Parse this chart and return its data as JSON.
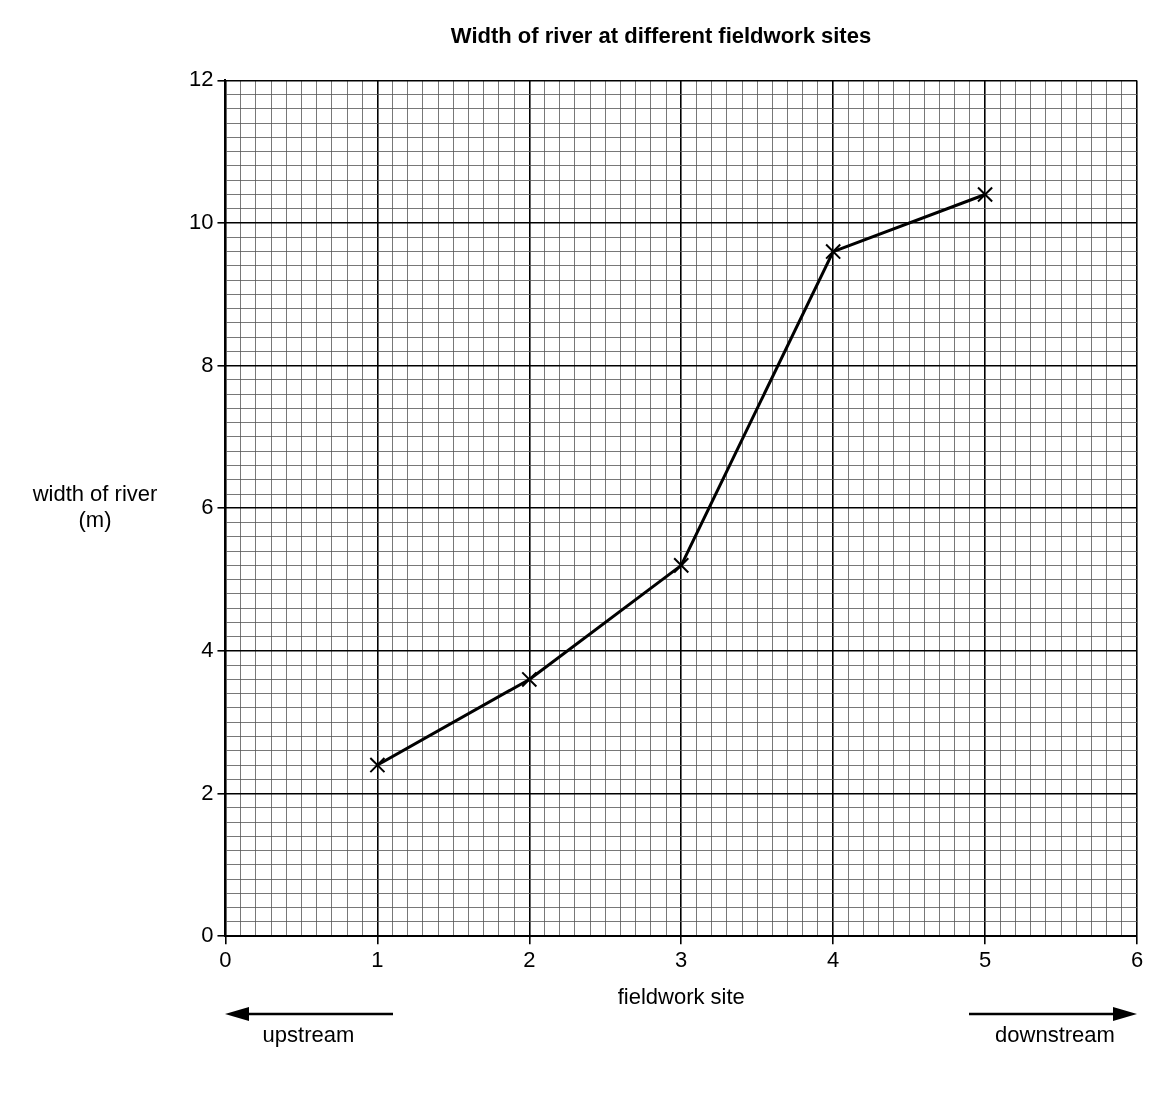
{
  "chart_data": {
    "type": "line",
    "title": "Width of river at different fieldwork sites",
    "xlabel": "fieldwork site",
    "ylabel": "width of river (m)",
    "x": [
      1,
      2,
      3,
      4,
      5
    ],
    "series": [
      {
        "color": "#000000",
        "values": [
          2.4,
          3.6,
          5.2,
          9.6,
          10.4
        ]
      }
    ],
    "xlim": [
      0,
      6
    ],
    "xticks": [
      0,
      {
        "value": 0.1,
        "label": null
      },
      {
        "value": 0.2,
        "label": null
      },
      {
        "value": 0.3,
        "label": null
      },
      {
        "value": 0.4,
        "label": null
      },
      {
        "value": 0.5,
        "label": null
      },
      {
        "value": 0.6,
        "label": null
      },
      {
        "value": 0.7,
        "label": null
      },
      {
        "value": 0.8,
        "label": null
      },
      {
        "value": 0.9,
        "label": null
      },
      1,
      {
        "value": 1.1,
        "label": null
      },
      {
        "value": 1.2,
        "label": null
      },
      {
        "value": 1.3,
        "label": null
      },
      {
        "value": 1.4,
        "label": null
      },
      {
        "value": 1.5,
        "label": null
      },
      {
        "value": 1.6,
        "label": null
      },
      {
        "value": 1.7,
        "label": null
      },
      {
        "value": 1.8,
        "label": null
      },
      {
        "value": 1.9,
        "label": null
      },
      2,
      {
        "value": 2.1,
        "label": null
      },
      {
        "value": 2.2,
        "label": null
      },
      {
        "value": 2.3,
        "label": null
      },
      {
        "value": 2.4,
        "label": null
      },
      {
        "value": 2.5,
        "label": null
      },
      {
        "value": 2.6,
        "label": null
      },
      {
        "value": 2.7,
        "label": null
      },
      {
        "value": 2.8,
        "label": null
      },
      {
        "value": 2.9,
        "label": null
      },
      3,
      {
        "value": 3.1,
        "label": null
      },
      {
        "value": 3.2,
        "label": null
      },
      {
        "value": 3.3,
        "label": null
      },
      {
        "value": 3.4,
        "label": null
      },
      {
        "value": 3.5,
        "label": null
      },
      {
        "value": 3.6,
        "label": null
      },
      {
        "value": 3.7,
        "label": null
      },
      {
        "value": 3.8,
        "label": null
      },
      {
        "value": 3.9,
        "label": null
      },
      4,
      {
        "value": 4.1,
        "label": null
      },
      {
        "value": 4.2,
        "label": null
      },
      {
        "value": 4.3,
        "label": null
      },
      {
        "value": 4.4,
        "label": null
      },
      {
        "value": 4.5,
        "label": null
      },
      {
        "value": 4.6,
        "label": null
      },
      {
        "value": 4.7,
        "label": null
      },
      {
        "value": 4.8,
        "label": null
      },
      {
        "value": 4.9,
        "label": null
      },
      5,
      {
        "value": 5.1,
        "label": null
      },
      {
        "value": 5.2,
        "label": null
      },
      {
        "value": 5.3,
        "label": null
      },
      {
        "value": 5.4,
        "label": null
      },
      {
        "value": 5.5,
        "label": null
      },
      {
        "value": 5.6,
        "label": null
      },
      {
        "value": 5.7,
        "label": null
      },
      {
        "value": 5.8,
        "label": null
      },
      {
        "value": 5.9,
        "label": null
      },
      6
    ],
    "ylim": [
      0,
      12
    ],
    "yticks": [
      0,
      {
        "value": 0.2,
        "label": null
      },
      {
        "value": 0.4,
        "label": null
      },
      {
        "value": 0.6,
        "label": null
      },
      {
        "value": 0.8,
        "label": null
      },
      {
        "value": 1,
        "label": null
      },
      {
        "value": 1.2,
        "label": null
      },
      {
        "value": 1.4,
        "label": null
      },
      {
        "value": 1.6,
        "label": null
      },
      {
        "value": 1.8,
        "label": null
      },
      2,
      {
        "value": 2.2,
        "label": null
      },
      {
        "value": 2.4,
        "label": null
      },
      {
        "value": 2.6,
        "label": null
      },
      {
        "value": 2.8,
        "label": null
      },
      {
        "value": 3,
        "label": null
      },
      {
        "value": 3.2,
        "label": null
      },
      {
        "value": 3.4,
        "label": null
      },
      {
        "value": 3.6,
        "label": null
      },
      {
        "value": 3.8,
        "label": null
      },
      4,
      {
        "value": 4.2,
        "label": null
      },
      {
        "value": 4.4,
        "label": null
      },
      {
        "value": 4.6,
        "label": null
      },
      {
        "value": 4.8,
        "label": null
      },
      {
        "value": 5,
        "label": null
      },
      {
        "value": 5.2,
        "label": null
      },
      {
        "value": 5.4,
        "label": null
      },
      {
        "value": 5.6,
        "label": null
      },
      {
        "value": 5.8,
        "label": null
      },
      6,
      {
        "value": 6.2,
        "label": null
      },
      {
        "value": 6.4,
        "label": null
      },
      {
        "value": 6.6,
        "label": null
      },
      {
        "value": 6.8,
        "label": null
      },
      {
        "value": 7,
        "label": null
      },
      {
        "value": 7.2,
        "label": null
      },
      {
        "value": 7.4,
        "label": null
      },
      {
        "value": 7.6,
        "label": null
      },
      {
        "value": 7.8,
        "label": null
      },
      8,
      {
        "value": 8.2,
        "label": null
      },
      {
        "value": 8.4,
        "label": null
      },
      {
        "value": 8.6,
        "label": null
      },
      {
        "value": 8.8,
        "label": null
      },
      {
        "value": 9,
        "label": null
      },
      {
        "value": 9.2,
        "label": null
      },
      {
        "value": 9.4,
        "label": null
      },
      {
        "value": 9.6,
        "label": null
      },
      {
        "value": 9.8,
        "label": null
      },
      10,
      {
        "value": 10.2,
        "label": null
      },
      {
        "value": 10.4,
        "label": null
      },
      {
        "value": 10.6,
        "label": null
      },
      {
        "value": 10.8,
        "label": null
      },
      {
        "value": 11,
        "label": null
      },
      {
        "value": 11.2,
        "label": null
      },
      {
        "value": 11.4,
        "label": null
      },
      {
        "value": 11.6,
        "label": null
      },
      {
        "value": 11.8,
        "label": null
      },
      12
    ],
    "grid": true,
    "marker": "cross",
    "line_style": "solid",
    "annotations": [
      "upstream",
      "downstream"
    ]
  }
}
